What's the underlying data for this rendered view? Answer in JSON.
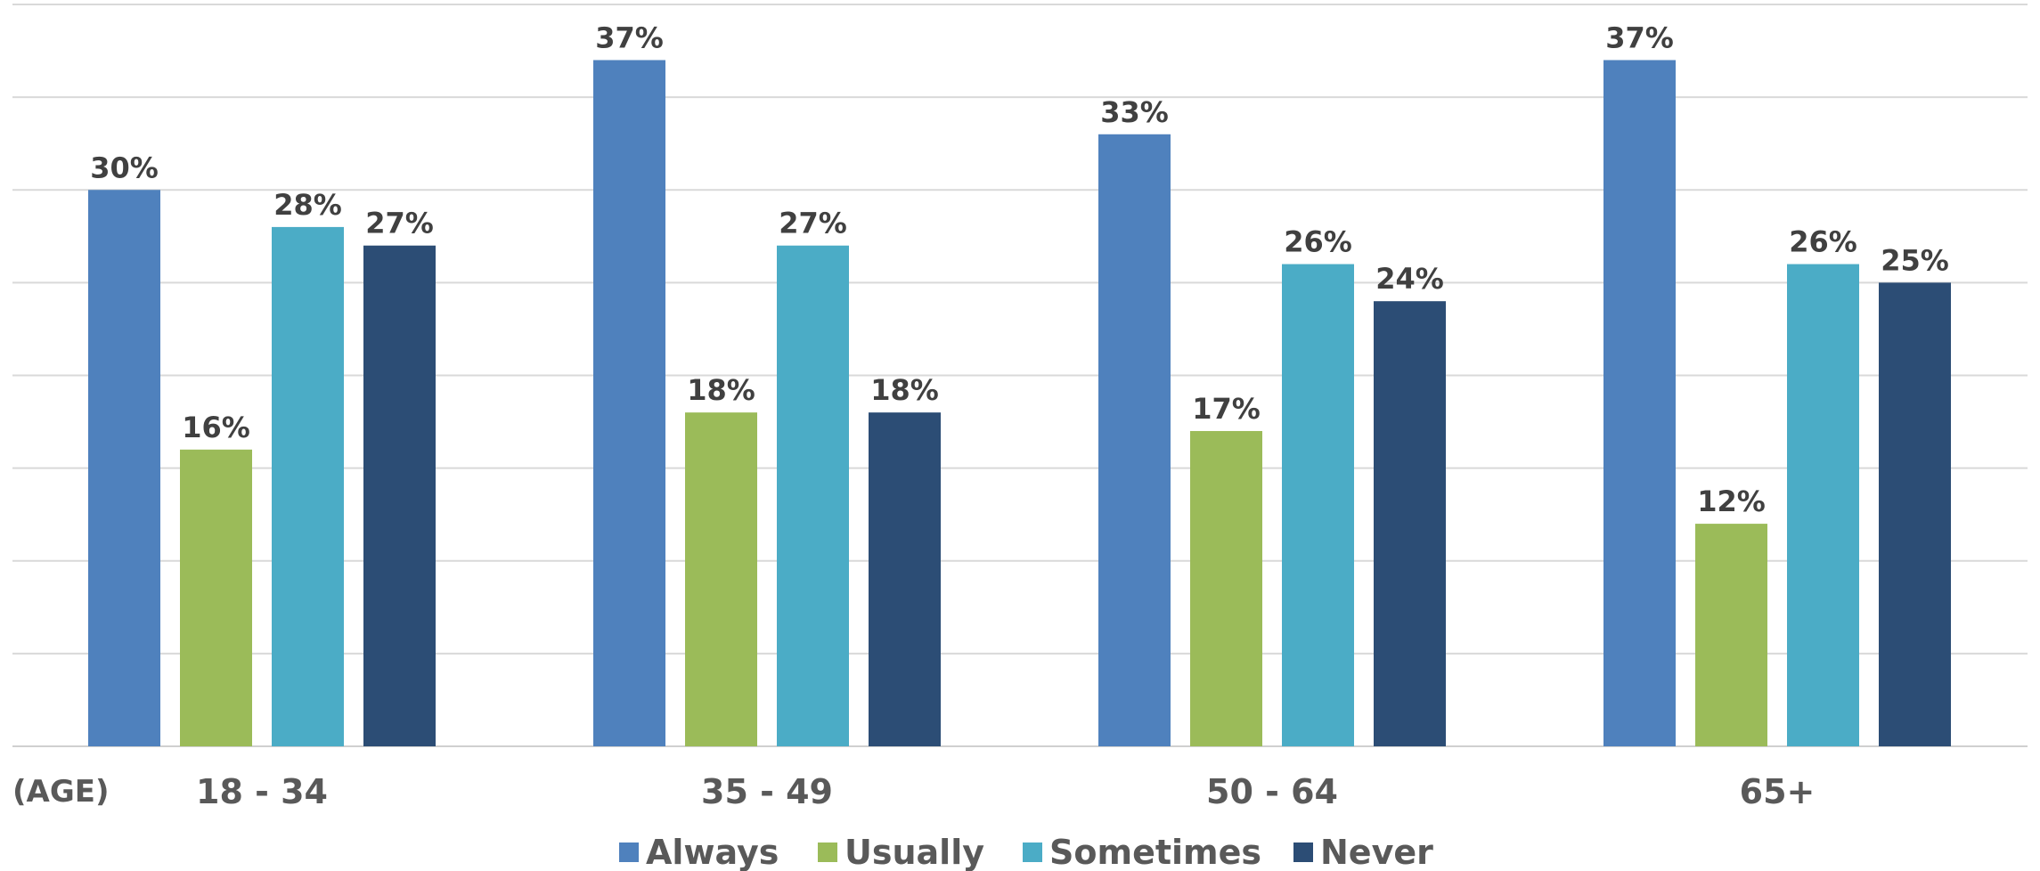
{
  "chart_data": {
    "type": "bar",
    "title": "",
    "xlabel": "(AGE)",
    "ylabel": "",
    "ylim": [
      0,
      40
    ],
    "grid": true,
    "legend_position": "bottom",
    "categories": [
      "18 - 34",
      "35 - 49",
      "50 - 64",
      "65+"
    ],
    "series": [
      {
        "name": "Always",
        "color": "#4f81bd",
        "values": [
          30,
          37,
          33,
          37
        ],
        "labels": [
          "30%",
          "37%",
          "33%",
          "37%"
        ]
      },
      {
        "name": "Usually",
        "color": "#9bbb59",
        "values": [
          16,
          18,
          17,
          12
        ],
        "labels": [
          "16%",
          "18%",
          "17%",
          "12%"
        ]
      },
      {
        "name": "Sometimes",
        "color": "#4bacc6",
        "values": [
          28,
          27,
          26,
          26
        ],
        "labels": [
          "28%",
          "27%",
          "26%",
          "26%"
        ]
      },
      {
        "name": "Never",
        "color": "#2c4d75",
        "values": [
          27,
          18,
          24,
          25
        ],
        "labels": [
          "27%",
          "18%",
          "24%",
          "25%"
        ]
      }
    ]
  }
}
